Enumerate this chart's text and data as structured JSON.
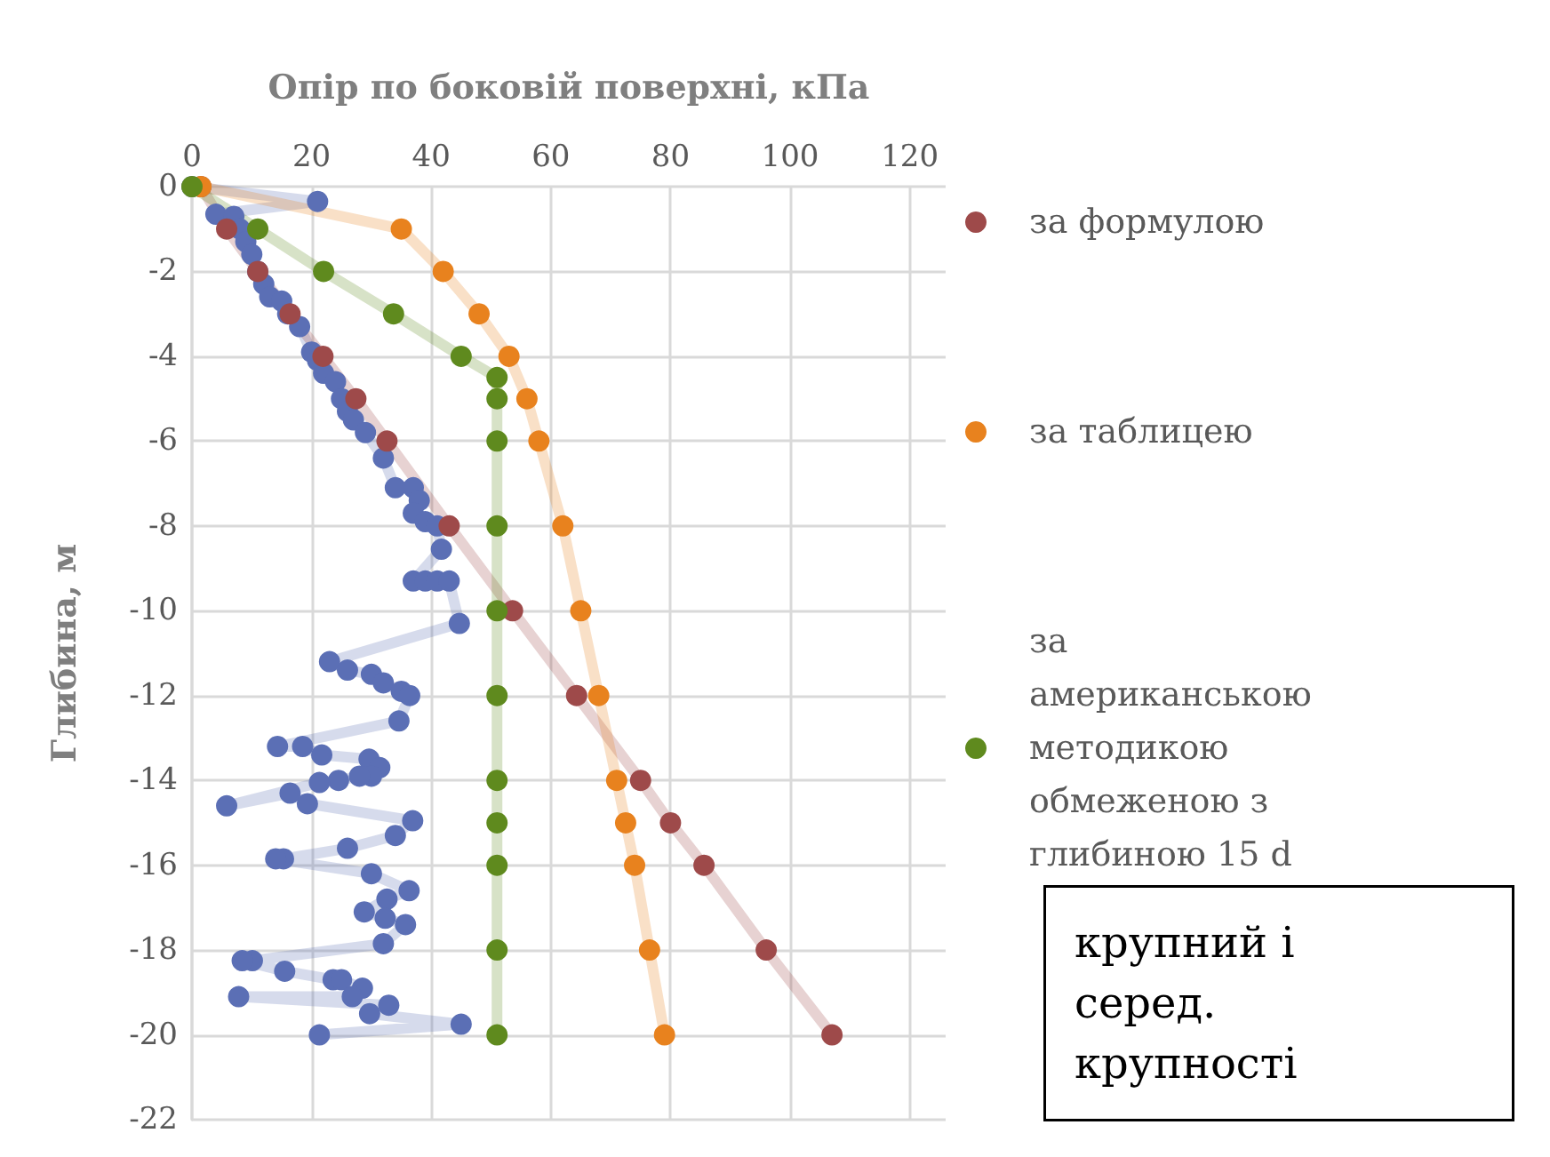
{
  "chart_data": {
    "type": "line",
    "xlabel": "Опір по боковій поверхні, кПа",
    "ylabel": "Глибина, м",
    "xlim": [
      0,
      126
    ],
    "xticks": [
      0,
      20,
      40,
      60,
      80,
      100,
      120
    ],
    "ylim": [
      -22,
      0
    ],
    "yticks": [
      0,
      -2,
      -4,
      -6,
      -8,
      -10,
      -12,
      -14,
      -16,
      -18,
      -20,
      -22
    ],
    "grid": true,
    "legend": "right",
    "marker": "circle",
    "line_style": "solid",
    "annotations": [
      "крупний і серед. крупності"
    ],
    "series": [
      {
        "color": "#5b6fb5",
        "x": [
          0,
          21,
          4,
          7,
          8,
          9,
          10,
          11,
          12,
          13,
          15,
          16,
          18,
          20,
          21,
          22,
          24,
          25,
          26,
          27,
          29,
          32,
          34,
          37,
          38,
          37,
          39,
          41,
          41.7,
          37,
          39,
          41,
          43,
          44.7,
          23,
          26,
          30,
          32,
          35,
          36.4,
          34.6,
          14.3,
          18.5,
          21.7,
          29.6,
          31.4,
          30,
          28,
          24.5,
          21.3,
          5.8,
          16.4,
          19.3,
          36.9,
          34,
          26,
          15.3,
          14,
          30,
          36.3,
          32.6,
          28.8,
          32.3,
          35.7,
          32,
          10.1,
          8.4,
          15.5,
          23.6,
          25,
          28.5,
          26.8,
          7.8,
          32.9,
          29.7,
          45,
          21.3
        ],
        "values": [
          0,
          -0.35,
          -0.65,
          -0.7,
          -1,
          -1.3,
          -1.6,
          -2,
          -2.3,
          -2.6,
          -2.7,
          -3,
          -3.3,
          -3.9,
          -4.1,
          -4.4,
          -4.6,
          -5,
          -5.3,
          -5.5,
          -5.8,
          -6.4,
          -7.1,
          -7.1,
          -7.4,
          -7.7,
          -7.9,
          -8,
          -8.55,
          -9.3,
          -9.3,
          -9.3,
          -9.3,
          -10.3,
          -11.2,
          -11.4,
          -11.5,
          -11.7,
          -11.9,
          -12,
          -12.6,
          -13.2,
          -13.2,
          -13.4,
          -13.5,
          -13.7,
          -13.9,
          -13.9,
          -14,
          -14.05,
          -14.6,
          -14.3,
          -14.55,
          -14.95,
          -15.3,
          -15.6,
          -15.85,
          -15.85,
          -16.2,
          -16.6,
          -16.8,
          -17.1,
          -17.25,
          -17.4,
          -17.85,
          -18.25,
          -18.25,
          -18.5,
          -18.7,
          -18.7,
          -18.9,
          -19.1,
          -19.1,
          -19.3,
          -19.5,
          -19.75,
          -20
        ]
      },
      {
        "name": "за формулою",
        "color": "#9e4a4a",
        "x": [
          1.5,
          5.8,
          11,
          16.4,
          21.9,
          27.4,
          32.6,
          43,
          53.6,
          64.3,
          75,
          80,
          85.6,
          96,
          107
        ],
        "values": [
          0,
          -1,
          -2,
          -3,
          -4,
          -5,
          -6,
          -8,
          -10,
          -12,
          -14,
          -15,
          -16,
          -18,
          -20
        ]
      },
      {
        "name": "за таблицею",
        "color": "#e8821e",
        "x": [
          1.5,
          35,
          42,
          48,
          53,
          56,
          58,
          62,
          65,
          68,
          71,
          72.5,
          74,
          76.5,
          79
        ],
        "values": [
          0,
          -1,
          -2,
          -3,
          -4,
          -5,
          -6,
          -8,
          -10,
          -12,
          -14,
          -15,
          -16,
          -18,
          -20
        ]
      },
      {
        "name": "за американською методикою обмеженою з глибиною 15 d",
        "color": "#5f8a1e",
        "x": [
          0,
          11,
          22,
          33.7,
          45,
          51,
          51,
          51,
          51,
          51,
          51,
          51,
          51,
          51,
          51,
          51
        ],
        "values": [
          0,
          -1,
          -2,
          -3,
          -4,
          -4.5,
          -5,
          -6,
          -8,
          -10,
          -12,
          -14,
          -15,
          -16,
          -18,
          -20
        ]
      }
    ]
  }
}
